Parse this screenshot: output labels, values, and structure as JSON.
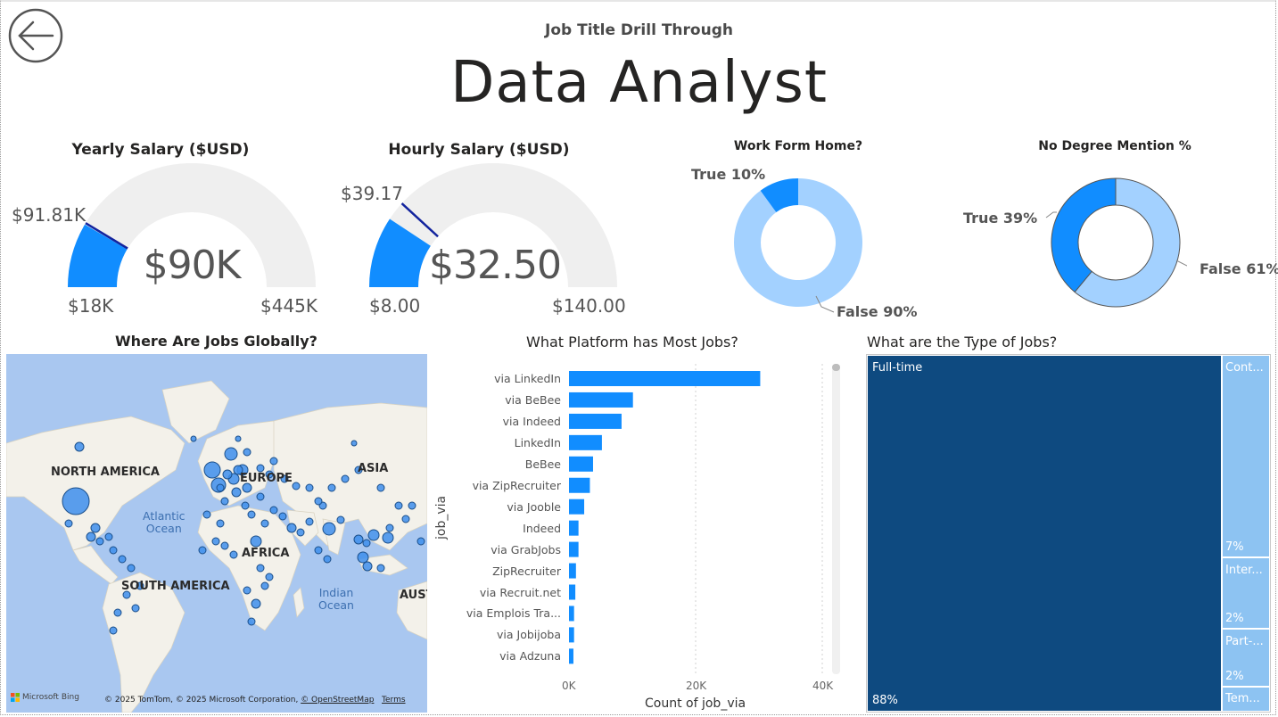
{
  "header": {
    "subtitle": "Job Title Drill Through",
    "title": "Data Analyst"
  },
  "yearly_salary": {
    "title": "Yearly Salary ($USD)",
    "value_label": "$90K",
    "min_label": "$18K",
    "max_label": "$445K",
    "target_label": "$91.81K",
    "value": 90,
    "min": 18,
    "max": 445,
    "target": 91.81
  },
  "hourly_salary": {
    "title": "Hourly Salary ($USD)",
    "value_label": "$32.50",
    "min_label": "$8.00",
    "max_label": "$140.00",
    "target_label": "$39.17",
    "value": 32.5,
    "min": 8,
    "max": 140,
    "target": 39.17
  },
  "wfh": {
    "title": "Work Form Home?",
    "true_label": "True 10%",
    "false_label": "False 90%",
    "true_pct": 10
  },
  "no_degree": {
    "title": "No Degree Mention %",
    "true_label": "True 39%",
    "false_label": "False 61%",
    "true_pct": 39
  },
  "map": {
    "title": "Where Are Jobs Globally?",
    "labels": {
      "north_america": "NORTH AMERICA",
      "europe": "EUROPE",
      "asia": "ASIA",
      "africa": "AFRICA",
      "south_america": "SOUTH AMERICA",
      "australia": "AUST"
    },
    "oceans": {
      "atlantic_1": "Atlantic",
      "atlantic_2": "Ocean",
      "indian_1": "Indian",
      "indian_2": "Ocean"
    },
    "bing": "Microsoft Bing",
    "attribution": "© 2025 TomTom, © 2025 Microsoft Corporation,",
    "osm_link": "© OpenStreetMap",
    "terms_link": "Terms"
  },
  "platform_chart": {
    "title": "What Platform has Most Jobs?",
    "ylabel": "job_via",
    "xlabel": "Count of job_via",
    "x_ticks": [
      "0K",
      "20K",
      "40K"
    ]
  },
  "chart_data": {
    "type": "bar",
    "orientation": "horizontal",
    "title": "What Platform has Most Jobs?",
    "xlabel": "Count of job_via",
    "ylabel": "job_via",
    "xlim": [
      0,
      40000
    ],
    "categories": [
      "via LinkedIn",
      "via BeBee",
      "via Indeed",
      "LinkedIn",
      "BeBee",
      "via ZipRecruiter",
      "via Jooble",
      "Indeed",
      "via GrabJobs",
      "ZipRecruiter",
      "via Recruit.net",
      "via Emplois Tra...",
      "via Jobijoba",
      "via Adzuna"
    ],
    "values": [
      30200,
      10100,
      8300,
      5200,
      3800,
      3300,
      2400,
      1500,
      1500,
      1100,
      1000,
      800,
      800,
      700
    ],
    "color": "#118dff"
  },
  "treemap": {
    "title": "What are the Type of Jobs?",
    "items": [
      {
        "label": "Full-time",
        "pct": "88%",
        "value": 88,
        "color": "#0e4a80"
      },
      {
        "label": "Cont...",
        "pct": "7%",
        "value": 7,
        "color": "#8dc3f2"
      },
      {
        "label": "Inter...",
        "pct": "2%",
        "value": 2,
        "color": "#8dc3f2"
      },
      {
        "label": "Part-...",
        "pct": "2%",
        "value": 2,
        "color": "#8dc3f2"
      },
      {
        "label": "Tem...",
        "pct": "",
        "value": 1,
        "color": "#8dc3f2"
      }
    ]
  },
  "colors": {
    "accent": "#118dff",
    "light_accent": "#a3d1ff",
    "gauge_track": "#efefef",
    "target_line": "#12239e",
    "map_water": "#a9c7f0",
    "map_land": "#f2efe9",
    "treemap_dark": "#0e4a80"
  }
}
